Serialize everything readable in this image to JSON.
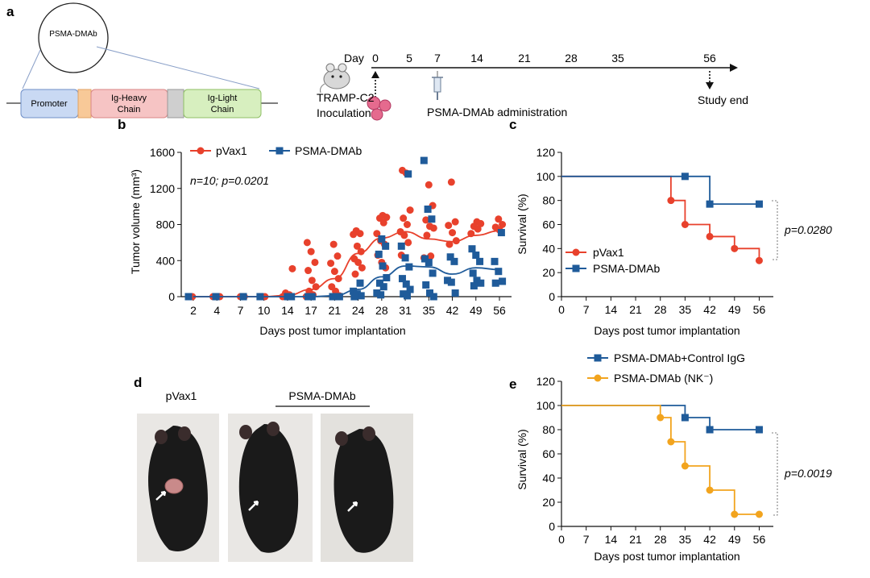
{
  "panels": {
    "a": {
      "letter": "a",
      "plasmid_label": "PSMA-DMAb",
      "construct": [
        "Promoter",
        "Ig-Heavy",
        "Chain",
        "Ig-Light",
        "Chain"
      ],
      "day_label": "Day",
      "days": [
        "0",
        "5",
        "7",
        "14",
        "21",
        "28",
        "35",
        "56"
      ],
      "inoculation": [
        "TRAMP-C2",
        "Inoculation"
      ],
      "administration": "PSMA-DMAb administration",
      "study_end": "Study end"
    },
    "b": {
      "letter": "b",
      "annotation": "n=10; p=0.0201"
    },
    "c": {
      "letter": "c",
      "pvalue": "p=0.0280"
    },
    "d": {
      "letter": "d",
      "label_left": "pVax1",
      "label_right": "PSMA-DMAb"
    },
    "e": {
      "letter": "e",
      "pvalue": "p=0.0019"
    }
  },
  "colors": {
    "red": "#e8412c",
    "blue": "#1f5b9a",
    "orange": "#f2a41e"
  },
  "chart_data": [
    {
      "id": "b",
      "type": "scatter",
      "xlabel": "Days post  tumor implantation",
      "ylabel": "Tumor volume  (mm³)",
      "categories": [
        "2",
        "4",
        "7",
        "10",
        "14",
        "17",
        "21",
        "24",
        "28",
        "31",
        "35",
        "42",
        "49",
        "56"
      ],
      "yticks": [
        "0",
        "400",
        "800",
        "1200",
        "1600"
      ],
      "ylim": [
        0,
        1600
      ],
      "legend": [
        "pVax1",
        "PSMA-DMAb"
      ],
      "series": [
        {
          "name": "pVax1",
          "color": "#e8412c",
          "marker": "circle",
          "mean": [
            0,
            0,
            0,
            0,
            15,
            80,
            200,
            480,
            650,
            720,
            640,
            610,
            680,
            730
          ],
          "points": [
            [
              0,
              0
            ],
            [
              0,
              0
            ],
            [
              1,
              0
            ],
            [
              1,
              0
            ],
            [
              2,
              0
            ],
            [
              2,
              0
            ],
            [
              3,
              0
            ],
            [
              3,
              0
            ],
            [
              4,
              310
            ],
            [
              4,
              40
            ],
            [
              4,
              20
            ],
            [
              4,
              0
            ],
            [
              4,
              0
            ],
            [
              4,
              0
            ],
            [
              5,
              600
            ],
            [
              5,
              500
            ],
            [
              5,
              380
            ],
            [
              5,
              290
            ],
            [
              5,
              180
            ],
            [
              5,
              110
            ],
            [
              5,
              60
            ],
            [
              5,
              20
            ],
            [
              5,
              0
            ],
            [
              6,
              580
            ],
            [
              6,
              450
            ],
            [
              6,
              370
            ],
            [
              6,
              280
            ],
            [
              6,
              200
            ],
            [
              6,
              110
            ],
            [
              6,
              60
            ],
            [
              6,
              10
            ],
            [
              7,
              730
            ],
            [
              7,
              700
            ],
            [
              7,
              690
            ],
            [
              7,
              560
            ],
            [
              7,
              500
            ],
            [
              7,
              420
            ],
            [
              7,
              380
            ],
            [
              7,
              320
            ],
            [
              7,
              250
            ],
            [
              8,
              900
            ],
            [
              8,
              880
            ],
            [
              8,
              870
            ],
            [
              8,
              820
            ],
            [
              8,
              700
            ],
            [
              8,
              620
            ],
            [
              8,
              580
            ],
            [
              8,
              460
            ],
            [
              8,
              380
            ],
            [
              8,
              320
            ],
            [
              9,
              1400
            ],
            [
              9,
              1370
            ],
            [
              9,
              960
            ],
            [
              9,
              870
            ],
            [
              9,
              800
            ],
            [
              9,
              720
            ],
            [
              9,
              680
            ],
            [
              9,
              600
            ],
            [
              9,
              460
            ],
            [
              10,
              1240
            ],
            [
              10,
              1010
            ],
            [
              10,
              850
            ],
            [
              10,
              780
            ],
            [
              10,
              760
            ],
            [
              10,
              680
            ],
            [
              10,
              450
            ],
            [
              10,
              430
            ],
            [
              11,
              1270
            ],
            [
              11,
              830
            ],
            [
              11,
              790
            ],
            [
              11,
              710
            ],
            [
              11,
              620
            ],
            [
              11,
              580
            ],
            [
              12,
              830
            ],
            [
              12,
              810
            ],
            [
              12,
              780
            ],
            [
              12,
              750
            ],
            [
              12,
              700
            ],
            [
              13,
              860
            ],
            [
              13,
              800
            ],
            [
              13,
              770
            ],
            [
              13,
              740
            ]
          ]
        },
        {
          "name": "PSMA-DMAb",
          "color": "#1f5b9a",
          "marker": "square",
          "mean": [
            0,
            0,
            0,
            0,
            0,
            0,
            10,
            80,
            220,
            340,
            330,
            250,
            320,
            300
          ],
          "points": [
            [
              0,
              0
            ],
            [
              1,
              0
            ],
            [
              2,
              0
            ],
            [
              3,
              0
            ],
            [
              4,
              0
            ],
            [
              4,
              0
            ],
            [
              5,
              0
            ],
            [
              5,
              0
            ],
            [
              6,
              0
            ],
            [
              6,
              0
            ],
            [
              7,
              150
            ],
            [
              7,
              60
            ],
            [
              7,
              30
            ],
            [
              7,
              10
            ],
            [
              7,
              0
            ],
            [
              8,
              640
            ],
            [
              8,
              560
            ],
            [
              8,
              470
            ],
            [
              8,
              340
            ],
            [
              8,
              210
            ],
            [
              8,
              150
            ],
            [
              8,
              110
            ],
            [
              8,
              40
            ],
            [
              8,
              20
            ],
            [
              9,
              1360
            ],
            [
              9,
              560
            ],
            [
              9,
              430
            ],
            [
              9,
              330
            ],
            [
              9,
              200
            ],
            [
              9,
              140
            ],
            [
              9,
              80
            ],
            [
              9,
              30
            ],
            [
              9,
              10
            ],
            [
              10,
              1510
            ],
            [
              10,
              970
            ],
            [
              10,
              860
            ],
            [
              10,
              420
            ],
            [
              10,
              380
            ],
            [
              10,
              260
            ],
            [
              10,
              130
            ],
            [
              10,
              40
            ],
            [
              10,
              0
            ],
            [
              11,
              440
            ],
            [
              11,
              390
            ],
            [
              11,
              180
            ],
            [
              11,
              160
            ],
            [
              11,
              40
            ],
            [
              12,
              530
            ],
            [
              12,
              460
            ],
            [
              12,
              390
            ],
            [
              12,
              260
            ],
            [
              12,
              180
            ],
            [
              12,
              150
            ],
            [
              12,
              120
            ],
            [
              13,
              710
            ],
            [
              13,
              390
            ],
            [
              13,
              280
            ],
            [
              13,
              170
            ],
            [
              13,
              150
            ]
          ]
        }
      ]
    },
    {
      "id": "c",
      "type": "line",
      "xlabel": "Days post tumor implantation",
      "ylabel": "Survival (%)",
      "xticks": [
        0,
        7,
        14,
        21,
        28,
        35,
        42,
        49,
        56
      ],
      "yticks": [
        0,
        20,
        40,
        60,
        80,
        100,
        120
      ],
      "xlim": [
        0,
        60
      ],
      "ylim": [
        0,
        120
      ],
      "legend": [
        "pVax1",
        "PSMA-DMAb"
      ],
      "series": [
        {
          "name": "pVax1",
          "color": "#e8412c",
          "marker": "circle",
          "steps": [
            [
              0,
              100
            ],
            [
              31,
              100
            ],
            [
              31,
              80
            ],
            [
              35,
              80
            ],
            [
              35,
              60
            ],
            [
              42,
              60
            ],
            [
              42,
              50
            ],
            [
              49,
              50
            ],
            [
              49,
              40
            ],
            [
              56,
              40
            ],
            [
              56,
              30
            ]
          ],
          "markers": [
            [
              31,
              80
            ],
            [
              35,
              60
            ],
            [
              42,
              50
            ],
            [
              49,
              40
            ],
            [
              56,
              30
            ]
          ]
        },
        {
          "name": "PSMA-DMAb",
          "color": "#1f5b9a",
          "marker": "square",
          "steps": [
            [
              0,
              100
            ],
            [
              35,
              100
            ],
            [
              35,
              100
            ],
            [
              42,
              100
            ],
            [
              42,
              77
            ],
            [
              56,
              77
            ]
          ],
          "markers": [
            [
              35,
              100
            ],
            [
              42,
              77
            ],
            [
              56,
              77
            ]
          ]
        }
      ]
    },
    {
      "id": "e",
      "type": "line",
      "xlabel": "Days post tumor implantation",
      "ylabel": "Survival (%)",
      "xticks": [
        0,
        7,
        14,
        21,
        28,
        35,
        42,
        49,
        56
      ],
      "yticks": [
        0,
        20,
        40,
        60,
        80,
        100,
        120
      ],
      "xlim": [
        0,
        60
      ],
      "ylim": [
        0,
        120
      ],
      "legend": [
        "PSMA-DMAb+Control IgG",
        "PSMA-DMAb (NK⁻)"
      ],
      "series": [
        {
          "name": "PSMA-DMAb+Control IgG",
          "color": "#1f5b9a",
          "marker": "square",
          "steps": [
            [
              0,
              100
            ],
            [
              35,
              100
            ],
            [
              35,
              90
            ],
            [
              42,
              90
            ],
            [
              42,
              80
            ],
            [
              56,
              80
            ]
          ],
          "markers": [
            [
              35,
              90
            ],
            [
              42,
              80
            ],
            [
              56,
              80
            ]
          ]
        },
        {
          "name": "PSMA-DMAb (NK⁻)",
          "color": "#f2a41e",
          "marker": "circle",
          "steps": [
            [
              0,
              100
            ],
            [
              28,
              100
            ],
            [
              28,
              90
            ],
            [
              31,
              90
            ],
            [
              31,
              70
            ],
            [
              35,
              70
            ],
            [
              35,
              50
            ],
            [
              42,
              50
            ],
            [
              42,
              30
            ],
            [
              49,
              30
            ],
            [
              49,
              10
            ],
            [
              56,
              10
            ]
          ],
          "markers": [
            [
              28,
              90
            ],
            [
              31,
              70
            ],
            [
              35,
              50
            ],
            [
              42,
              30
            ],
            [
              49,
              10
            ],
            [
              56,
              10
            ]
          ]
        }
      ]
    }
  ]
}
